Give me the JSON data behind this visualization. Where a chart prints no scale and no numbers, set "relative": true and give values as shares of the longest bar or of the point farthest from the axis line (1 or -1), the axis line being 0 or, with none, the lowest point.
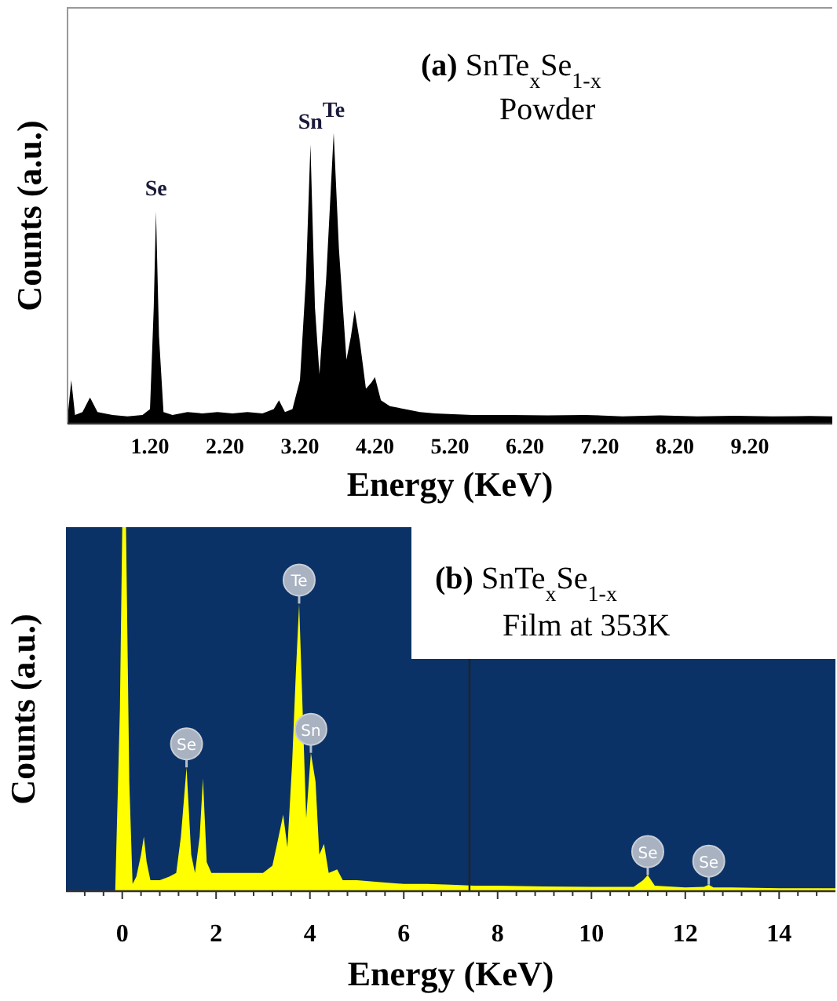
{
  "chart_data": [
    {
      "type": "area",
      "title": "(a) SnTe$_{x}$Se$_{1-x}$",
      "subtitle": "Powder",
      "xlabel": "Energy (KeV)",
      "ylabel": "Counts (a.u.)",
      "relative": true,
      "color": "#000000",
      "x": [
        0.1,
        0.15,
        0.2,
        0.3,
        0.4,
        0.5,
        0.7,
        0.9,
        1.1,
        1.2,
        1.25,
        1.28,
        1.32,
        1.38,
        1.5,
        1.7,
        1.9,
        2.1,
        2.3,
        2.5,
        2.7,
        2.85,
        2.92,
        3.0,
        3.1,
        3.2,
        3.28,
        3.34,
        3.4,
        3.46,
        3.55,
        3.65,
        3.72,
        3.82,
        3.88,
        3.93,
        4.0,
        4.08,
        4.15,
        4.2,
        4.28,
        4.4,
        4.6,
        4.8,
        5.0,
        5.5,
        6.0,
        6.5,
        7.0,
        7.5,
        8.0,
        8.5,
        9.0,
        9.5,
        10.0,
        10.3
      ],
      "values": [
        0.02,
        0.15,
        0.03,
        0.04,
        0.09,
        0.04,
        0.03,
        0.025,
        0.03,
        0.05,
        0.4,
        0.73,
        0.3,
        0.04,
        0.03,
        0.04,
        0.035,
        0.04,
        0.035,
        0.04,
        0.035,
        0.05,
        0.08,
        0.04,
        0.05,
        0.15,
        0.5,
        0.96,
        0.4,
        0.17,
        0.5,
        1,
        0.6,
        0.22,
        0.3,
        0.39,
        0.28,
        0.12,
        0.14,
        0.16,
        0.08,
        0.06,
        0.05,
        0.04,
        0.035,
        0.03,
        0.03,
        0.028,
        0.03,
        0.025,
        0.028,
        0.025,
        0.027,
        0.025,
        0.026,
        0.025
      ],
      "xlim": [
        0.1,
        10.3
      ],
      "xticks": [
        {
          "value": 1.2,
          "label": "1.20"
        },
        {
          "value": 2.2,
          "label": "2.20"
        },
        {
          "value": 3.2,
          "label": "3.20"
        },
        {
          "value": 4.2,
          "label": "4.20"
        },
        {
          "value": 5.2,
          "label": "5.20"
        },
        {
          "value": 6.2,
          "label": "6.20"
        },
        {
          "value": 7.2,
          "label": "7.20"
        },
        {
          "value": 8.2,
          "label": "8.20"
        },
        {
          "value": 9.2,
          "label": "9.20"
        }
      ],
      "annotations": [
        {
          "text": "Se",
          "x": 1.28,
          "y": 0.73
        },
        {
          "text": "Sn",
          "x": 3.34,
          "y": 0.96
        },
        {
          "text": "Te",
          "x": 3.65,
          "y": 1
        }
      ]
    },
    {
      "type": "area",
      "title": "(b) SnTe$_{x}$Se$_{1-x}$",
      "subtitle": "Film at 353K",
      "xlabel": "Energy (KeV)",
      "ylabel": "Counts (a.u.)",
      "relative": true,
      "color": "#ffff00",
      "x": [
        -0.15,
        -0.05,
        0,
        0.08,
        0.15,
        0.22,
        0.3,
        0.4,
        0.46,
        0.52,
        0.6,
        0.8,
        1.0,
        1.15,
        1.25,
        1.37,
        1.47,
        1.55,
        1.65,
        1.72,
        1.8,
        1.9,
        2.2,
        2.5,
        2.8,
        3.0,
        3.2,
        3.3,
        3.43,
        3.52,
        3.62,
        3.7,
        3.77,
        3.92,
        4.02,
        4.12,
        4.2,
        4.3,
        4.4,
        4.58,
        4.7,
        5.0,
        5.5,
        6.0,
        6.5,
        7.0,
        7.5,
        8.0,
        9.0,
        10.0,
        10.9,
        11.1,
        11.2,
        11.35,
        12.0,
        12.4,
        12.5,
        12.6,
        13.0,
        14.0,
        15.2
      ],
      "values": [
        0,
        0.5,
        1,
        1,
        0.3,
        0.02,
        0.04,
        0.1,
        0.15,
        0.08,
        0.03,
        0.03,
        0.04,
        0.05,
        0.15,
        0.34,
        0.1,
        0.05,
        0.15,
        0.31,
        0.08,
        0.05,
        0.05,
        0.05,
        0.05,
        0.05,
        0.07,
        0.13,
        0.21,
        0.12,
        0.35,
        0.6,
        0.79,
        0.2,
        0.38,
        0.3,
        0.1,
        0.13,
        0.05,
        0.06,
        0.03,
        0.03,
        0.025,
        0.02,
        0.02,
        0.018,
        0.015,
        0.015,
        0.013,
        0.012,
        0.012,
        0.03,
        0.044,
        0.015,
        0.01,
        0.012,
        0.018,
        0.01,
        0.01,
        0.008,
        0.008
      ],
      "xlim": [
        -1.2,
        15.2
      ],
      "xticks": [
        {
          "value": -0.8,
          "label": null
        },
        {
          "value": -0.4,
          "label": null
        },
        0,
        {
          "value": 0.4,
          "label": null
        },
        {
          "value": 0.8,
          "label": null
        },
        {
          "value": 1.2,
          "label": null
        },
        {
          "value": 1.6,
          "label": null
        },
        2,
        {
          "value": 2.4,
          "label": null
        },
        {
          "value": 2.8,
          "label": null
        },
        {
          "value": 3.2,
          "label": null
        },
        {
          "value": 3.6,
          "label": null
        },
        4,
        {
          "value": 4.4,
          "label": null
        },
        {
          "value": 4.8,
          "label": null
        },
        {
          "value": 5.2,
          "label": null
        },
        {
          "value": 5.6,
          "label": null
        },
        6,
        {
          "value": 6.4,
          "label": null
        },
        {
          "value": 6.8,
          "label": null
        },
        {
          "value": 7.2,
          "label": null
        },
        {
          "value": 7.6,
          "label": null
        },
        8,
        {
          "value": 8.4,
          "label": null
        },
        {
          "value": 8.8,
          "label": null
        },
        {
          "value": 9.2,
          "label": null
        },
        {
          "value": 9.6,
          "label": null
        },
        10,
        {
          "value": 10.4,
          "label": null
        },
        {
          "value": 10.8,
          "label": null
        },
        {
          "value": 11.2,
          "label": null
        },
        {
          "value": 11.6,
          "label": null
        },
        12,
        {
          "value": 12.4,
          "label": null
        },
        {
          "value": 12.8,
          "label": null
        },
        {
          "value": 13.2,
          "label": null
        },
        {
          "value": 13.6,
          "label": null
        },
        14,
        {
          "value": 14.4,
          "label": null
        },
        {
          "value": 14.8,
          "label": null
        }
      ],
      "ref_lines": [
        {
          "axis": "x",
          "value": 7.4,
          "color": "#222222"
        }
      ],
      "annotations": [
        {
          "text": "Se",
          "x": 1.37,
          "y": 0.34
        },
        {
          "text": "Te",
          "x": 3.77,
          "y": 0.79
        },
        {
          "text": "Sn",
          "x": 4.02,
          "y": 0.38
        },
        {
          "text": "Se",
          "x": 11.2,
          "y": 0.044
        },
        {
          "text": "Se",
          "x": 12.5,
          "y": 0.018
        }
      ]
    }
  ]
}
